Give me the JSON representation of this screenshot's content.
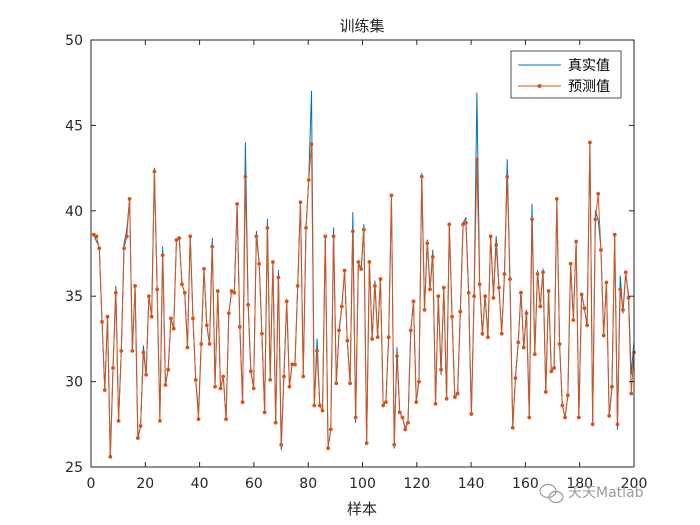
{
  "chart_data": {
    "type": "line",
    "title": "训练集",
    "xlabel": "样本",
    "ylabel": "",
    "xlim": [
      0,
      200
    ],
    "ylim": [
      25,
      50
    ],
    "x_ticks": [
      "0",
      "20",
      "40",
      "60",
      "80",
      "100",
      "120",
      "140",
      "160",
      "180",
      "200"
    ],
    "y_ticks": [
      "25",
      "30",
      "35",
      "40",
      "45",
      "50"
    ],
    "grid": false,
    "legend_position": "top-right",
    "series": [
      {
        "name": "真实值",
        "color": "#0072BD",
        "marker": "none",
        "values": [
          38.6,
          38.2,
          37.9,
          33.5,
          29.5,
          33.8,
          25.5,
          30.8,
          35.6,
          27.7,
          31.8,
          38.1,
          38.9,
          40.7,
          31.8,
          35.6,
          26.6,
          27.4,
          32.1,
          30.4,
          35.0,
          33.8,
          42.5,
          35.4,
          27.8,
          37.9,
          29.8,
          30.7,
          33.7,
          33.1,
          38.3,
          38.5,
          35.7,
          35.2,
          32.1,
          38.6,
          33.7,
          30.1,
          28.2,
          32.3,
          36.6,
          33.3,
          32.2,
          38.4,
          29.8,
          35.3,
          29.6,
          30.3,
          27.8,
          34.0,
          35.3,
          35.2,
          40.4,
          33.2,
          28.7,
          44.0,
          34.6,
          30.6,
          29.6,
          38.8,
          37.0,
          32.8,
          28.3,
          39.5,
          30.2,
          37.0,
          27.5,
          36.5,
          26.0,
          30.3,
          34.8,
          29.7,
          31.1,
          31.0,
          35.7,
          40.5,
          30.4,
          38.9,
          41.9,
          47.0,
          28.6,
          32.5,
          28.6,
          28.3,
          38.6,
          26.1,
          27.2,
          39.0,
          29.9,
          32.9,
          34.4,
          36.5,
          32.3,
          29.9,
          39.9,
          27.6,
          36.9,
          36.5,
          39.2,
          26.3,
          37.1,
          32.4,
          35.9,
          32.6,
          36.1,
          28.6,
          28.9,
          32.6,
          40.9,
          26.1,
          32.0,
          28.2,
          27.9,
          27.3,
          27.6,
          32.9,
          34.7,
          28.8,
          30.2,
          42.2,
          34.2,
          38.3,
          35.4,
          37.7,
          28.7,
          35.0,
          30.4,
          35.5,
          28.9,
          39.3,
          33.8,
          29.0,
          29.3,
          34.1,
          39.3,
          39.6,
          35.2,
          28.0,
          35.1,
          46.9,
          35.8,
          32.7,
          35.1,
          32.6,
          38.6,
          35.0,
          38.5,
          35.6,
          32.8,
          36.2,
          43.0,
          36.0,
          27.3,
          30.3,
          32.3,
          35.3,
          31.9,
          34.2,
          28.0,
          40.4,
          31.6,
          36.5,
          34.4,
          36.6,
          29.3,
          35.4,
          30.6,
          30.9,
          40.7,
          32.2,
          28.6,
          27.9,
          29.2,
          36.9,
          33.7,
          38.2,
          27.9,
          35.2,
          34.3,
          33.2,
          44.1,
          27.5,
          40.0,
          39.5,
          37.8,
          32.7,
          35.9,
          27.9,
          29.6,
          38.6,
          27.2,
          36.2,
          34.0,
          36.3,
          35.1,
          30.4,
          32.4
        ]
      },
      {
        "name": "预测值",
        "color": "#D95319",
        "marker": "dot",
        "values": [
          38.6,
          38.5,
          37.8,
          33.5,
          29.5,
          33.8,
          25.6,
          30.8,
          35.2,
          27.7,
          31.8,
          37.8,
          38.5,
          40.7,
          31.8,
          35.6,
          26.7,
          27.4,
          31.7,
          30.4,
          35.0,
          33.8,
          42.3,
          35.4,
          27.7,
          37.4,
          29.8,
          30.7,
          33.7,
          33.1,
          38.3,
          38.4,
          35.7,
          35.2,
          32.0,
          38.5,
          33.7,
          30.1,
          27.8,
          32.2,
          36.6,
          33.3,
          32.2,
          37.9,
          29.7,
          35.3,
          29.6,
          30.3,
          27.8,
          34.0,
          35.3,
          35.2,
          40.4,
          33.2,
          28.8,
          42.0,
          34.5,
          30.6,
          29.6,
          38.5,
          36.9,
          32.8,
          28.2,
          39.0,
          30.1,
          37.0,
          27.6,
          36.1,
          26.3,
          30.3,
          34.7,
          29.7,
          31.0,
          31.0,
          35.6,
          40.5,
          30.3,
          39.0,
          41.8,
          43.9,
          28.6,
          31.8,
          28.6,
          28.3,
          38.5,
          26.1,
          27.2,
          38.5,
          29.9,
          33.0,
          34.4,
          36.5,
          32.4,
          29.9,
          38.8,
          27.9,
          37.0,
          36.6,
          38.9,
          26.4,
          37.0,
          32.5,
          35.6,
          32.6,
          36.0,
          28.6,
          28.8,
          32.6,
          40.9,
          26.3,
          31.5,
          28.2,
          27.9,
          27.2,
          27.6,
          33.0,
          34.7,
          28.8,
          30.0,
          42.0,
          34.2,
          38.1,
          35.4,
          37.3,
          28.7,
          35.0,
          30.7,
          35.5,
          29.0,
          39.2,
          33.8,
          29.1,
          29.3,
          34.1,
          39.2,
          39.3,
          35.2,
          28.1,
          35.0,
          43.0,
          35.7,
          32.8,
          35.0,
          32.6,
          38.5,
          34.9,
          38.0,
          35.5,
          32.8,
          36.3,
          42.0,
          36.0,
          27.3,
          30.2,
          32.3,
          35.2,
          32.0,
          34.0,
          27.9,
          39.5,
          31.6,
          36.3,
          34.4,
          36.4,
          29.4,
          35.3,
          30.6,
          30.8,
          40.7,
          32.2,
          28.6,
          27.9,
          29.2,
          36.9,
          33.6,
          38.2,
          27.9,
          35.1,
          34.3,
          33.3,
          44.0,
          27.5,
          39.5,
          41.0,
          37.7,
          32.7,
          35.8,
          28.0,
          29.7,
          38.6,
          27.5,
          35.4,
          34.2,
          36.4,
          34.9,
          29.3,
          31.7
        ]
      }
    ]
  },
  "watermark": {
    "text": "天天Matlab"
  }
}
